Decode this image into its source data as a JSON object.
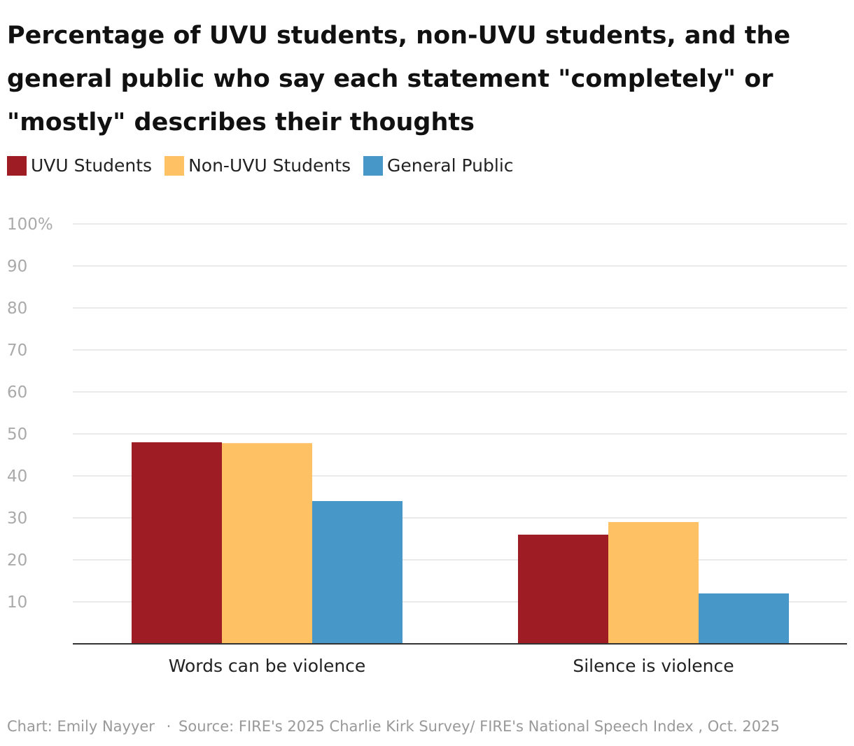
{
  "title": "Percentage of UVU students, non-UVU students, and the general public who say each statement \"completely\" or \"mostly\" describes their thoughts",
  "footer": {
    "credit": "Chart: Emily Nayyer",
    "separator": "·",
    "source": "Source: FIRE's 2025 Charlie Kirk Survey/ FIRE's National Speech Index , Oct. 2025"
  },
  "chart_data": {
    "type": "bar",
    "categories": [
      "Words can be violence",
      "Silence is violence"
    ],
    "series": [
      {
        "name": "UVU Students",
        "values": [
          48,
          26
        ],
        "color": "#9e1c24"
      },
      {
        "name": "Non-UVU Students",
        "values": [
          47.8,
          29
        ],
        "color": "#fec265"
      },
      {
        "name": "General Public",
        "values": [
          34,
          12
        ],
        "color": "#4797c8"
      }
    ],
    "y_ticks": [
      "10",
      "20",
      "30",
      "40",
      "50",
      "60",
      "70",
      "80",
      "90",
      "100%"
    ],
    "ylim": [
      0,
      100
    ],
    "grid": true,
    "legend_position": "top-left"
  }
}
